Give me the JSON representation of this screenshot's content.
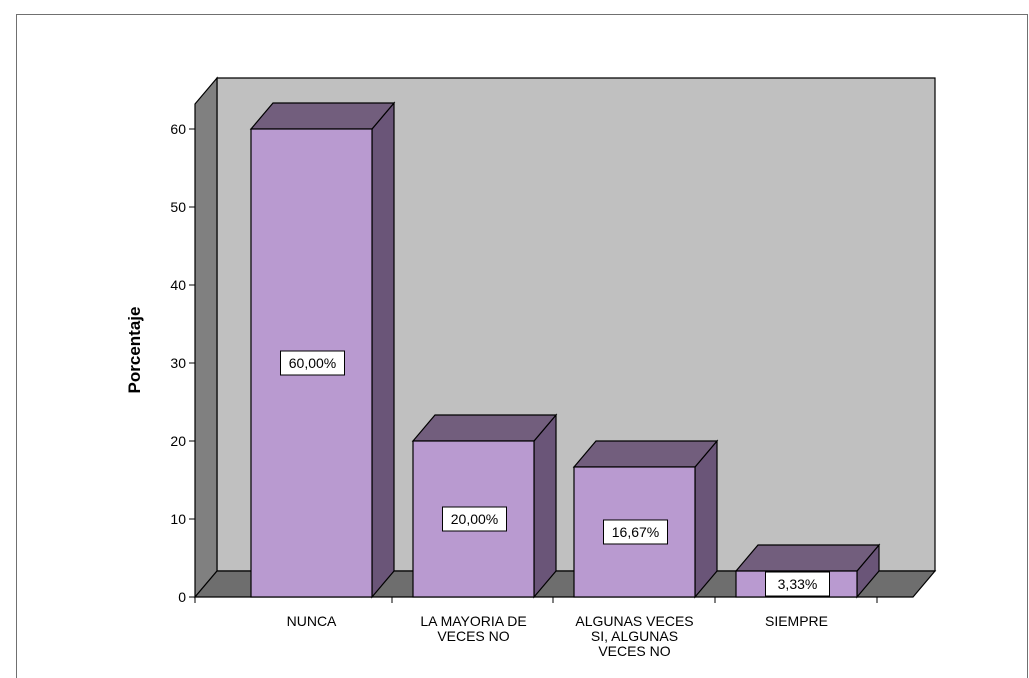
{
  "chart_data": {
    "type": "bar",
    "style": "3d",
    "title": "",
    "xlabel": "",
    "ylabel": "Porcentaje",
    "ylim": [
      0,
      60
    ],
    "yticks": [
      "0",
      "10",
      "20",
      "30",
      "40",
      "50",
      "60"
    ],
    "categories": [
      "NUNCA",
      "LA MAYORIA DE VECES NO",
      "ALGUNAS VECES SI, ALGUNAS VECES NO",
      "SIEMPRE"
    ],
    "category_lines": [
      [
        "NUNCA"
      ],
      [
        "LA MAYORIA DE",
        "VECES NO"
      ],
      [
        "ALGUNAS VECES",
        "SI, ALGUNAS",
        "VECES NO"
      ],
      [
        "SIEMPRE"
      ]
    ],
    "values": [
      60.0,
      20.0,
      16.67,
      3.33
    ],
    "data_labels": [
      "60,00%",
      "20,00%",
      "16,67%",
      "3,33%"
    ],
    "grid": false,
    "legend": "none"
  },
  "colors": {
    "bar_front": "#b99ad0",
    "bar_top": "#725e7d",
    "bar_side": "#6a5578",
    "back_wall": "#c0c0c0",
    "left_wall": "#808080",
    "floor": "#6e6e6e",
    "outline": "#000000"
  }
}
